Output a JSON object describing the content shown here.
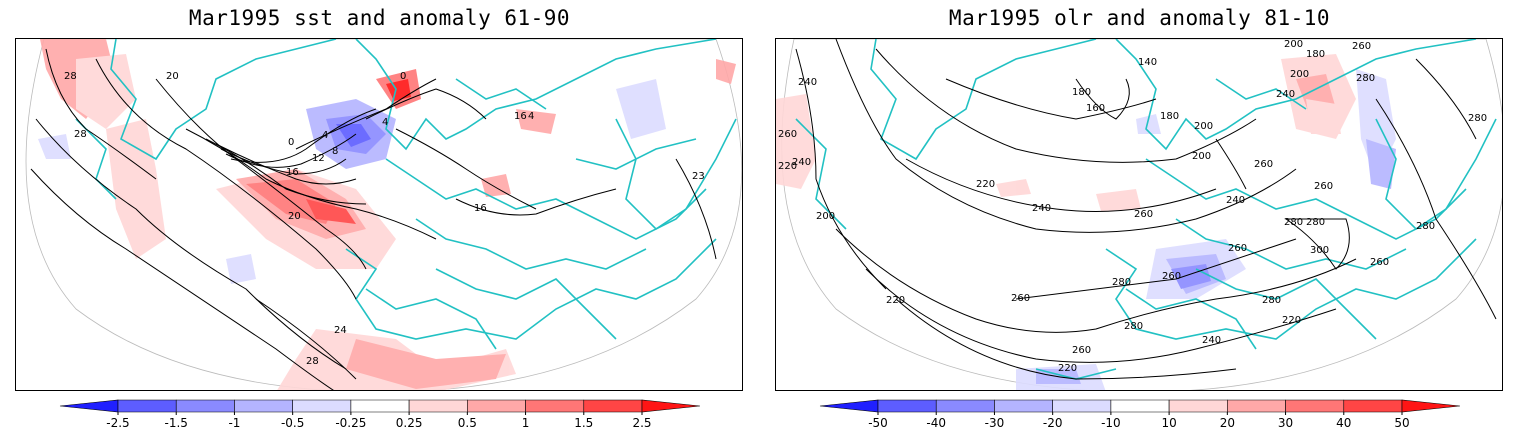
{
  "panels": [
    {
      "id": "sst",
      "title": "Mar1995 sst and anomaly 61-90",
      "contour_labels": [
        "28",
        "28",
        "20",
        "24",
        "28",
        "20",
        "16",
        "12",
        "8",
        "4",
        "0",
        "4",
        "0",
        "16",
        "23",
        "16",
        "4"
      ],
      "colorbar": {
        "ticks": [
          "-2.5",
          "-1.5",
          "-1",
          "-0.5",
          "-0.25",
          "0.25",
          "0.5",
          "1",
          "1.5",
          "2.5"
        ],
        "colors": [
          "#2020ff",
          "#5d5dff",
          "#8a8aff",
          "#b4b4ff",
          "#dcdcff",
          "#ffffff",
          "#ffd7d7",
          "#ffa8a8",
          "#ff7676",
          "#ff4545",
          "#ff1515"
        ]
      }
    },
    {
      "id": "olr",
      "title": "Mar1995 olr and anomaly 81-10",
      "contour_labels": [
        "240",
        "260",
        "240",
        "220",
        "200",
        "140",
        "180",
        "160",
        "180",
        "200",
        "200",
        "180",
        "200",
        "240",
        "260",
        "280",
        "280",
        "260",
        "220",
        "240",
        "260",
        "200",
        "240",
        "260",
        "280",
        "300",
        "280",
        "260",
        "280",
        "220",
        "260",
        "280",
        "260",
        "280",
        "220",
        "260",
        "240",
        "220",
        "280",
        "260"
      ],
      "colorbar": {
        "ticks": [
          "-50",
          "-40",
          "-30",
          "-20",
          "-10",
          "10",
          "20",
          "30",
          "40",
          "50"
        ],
        "colors": [
          "#2020ff",
          "#5d5dff",
          "#8a8aff",
          "#b4b4ff",
          "#dcdcff",
          "#ffffff",
          "#ffd7d7",
          "#ffa8a8",
          "#ff7676",
          "#ff4545",
          "#ff1515"
        ]
      }
    }
  ]
}
